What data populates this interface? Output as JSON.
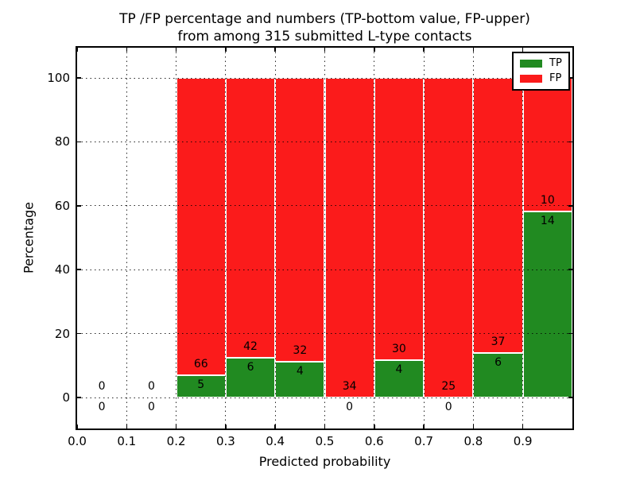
{
  "chart_data": {
    "type": "bar",
    "stacked": true,
    "percent_normalized": true,
    "title": "TP /FP percentage and numbers (TP-bottom value, FP-upper)\nfrom among 315 submitted L-type contacts",
    "xlabel": "Predicted probability",
    "ylabel": "Percentage",
    "total_submitted": 315,
    "xlim": [
      0.0,
      1.0
    ],
    "ylim": [
      -9.5,
      109.5
    ],
    "grid": "dotted",
    "xtick_values": [
      0.0,
      0.1,
      0.2,
      0.3,
      0.4,
      0.5,
      0.6,
      0.7,
      0.8,
      0.9
    ],
    "xtick_labels": [
      "0.0",
      "0.1",
      "0.2",
      "0.3",
      "0.4",
      "0.5",
      "0.6",
      "0.7",
      "0.8",
      "0.9"
    ],
    "ytick_values": [
      0,
      20,
      40,
      60,
      80,
      100
    ],
    "ytick_labels": [
      "0",
      "20",
      "40",
      "60",
      "80",
      "100"
    ],
    "legend": {
      "position": "upper right",
      "entries": [
        {
          "label": "TP",
          "color": "#218a21"
        },
        {
          "label": "FP",
          "color": "#fb1b1b"
        }
      ]
    },
    "annotation_rule": "FP count shown above TP/FP boundary, TP count shown below boundary",
    "bins": [
      {
        "x0": 0.0,
        "x1": 0.1,
        "tp": 0,
        "fp": 0
      },
      {
        "x0": 0.1,
        "x1": 0.2,
        "tp": 0,
        "fp": 0
      },
      {
        "x0": 0.2,
        "x1": 0.3,
        "tp": 5,
        "fp": 66
      },
      {
        "x0": 0.3,
        "x1": 0.4,
        "tp": 6,
        "fp": 42
      },
      {
        "x0": 0.4,
        "x1": 0.5,
        "tp": 4,
        "fp": 32
      },
      {
        "x0": 0.5,
        "x1": 0.6,
        "tp": 0,
        "fp": 34
      },
      {
        "x0": 0.6,
        "x1": 0.7,
        "tp": 4,
        "fp": 30
      },
      {
        "x0": 0.7,
        "x1": 0.8,
        "tp": 0,
        "fp": 25
      },
      {
        "x0": 0.8,
        "x1": 0.9,
        "tp": 6,
        "fp": 37
      },
      {
        "x0": 0.9,
        "x1": 1.0,
        "tp": 14,
        "fp": 10
      }
    ],
    "colors": {
      "tp": "#218a21",
      "fp": "#fb1b1b",
      "bar_edge": "#ffffff",
      "grid": "#000000",
      "background": "#ffffff",
      "text": "#000000"
    }
  }
}
